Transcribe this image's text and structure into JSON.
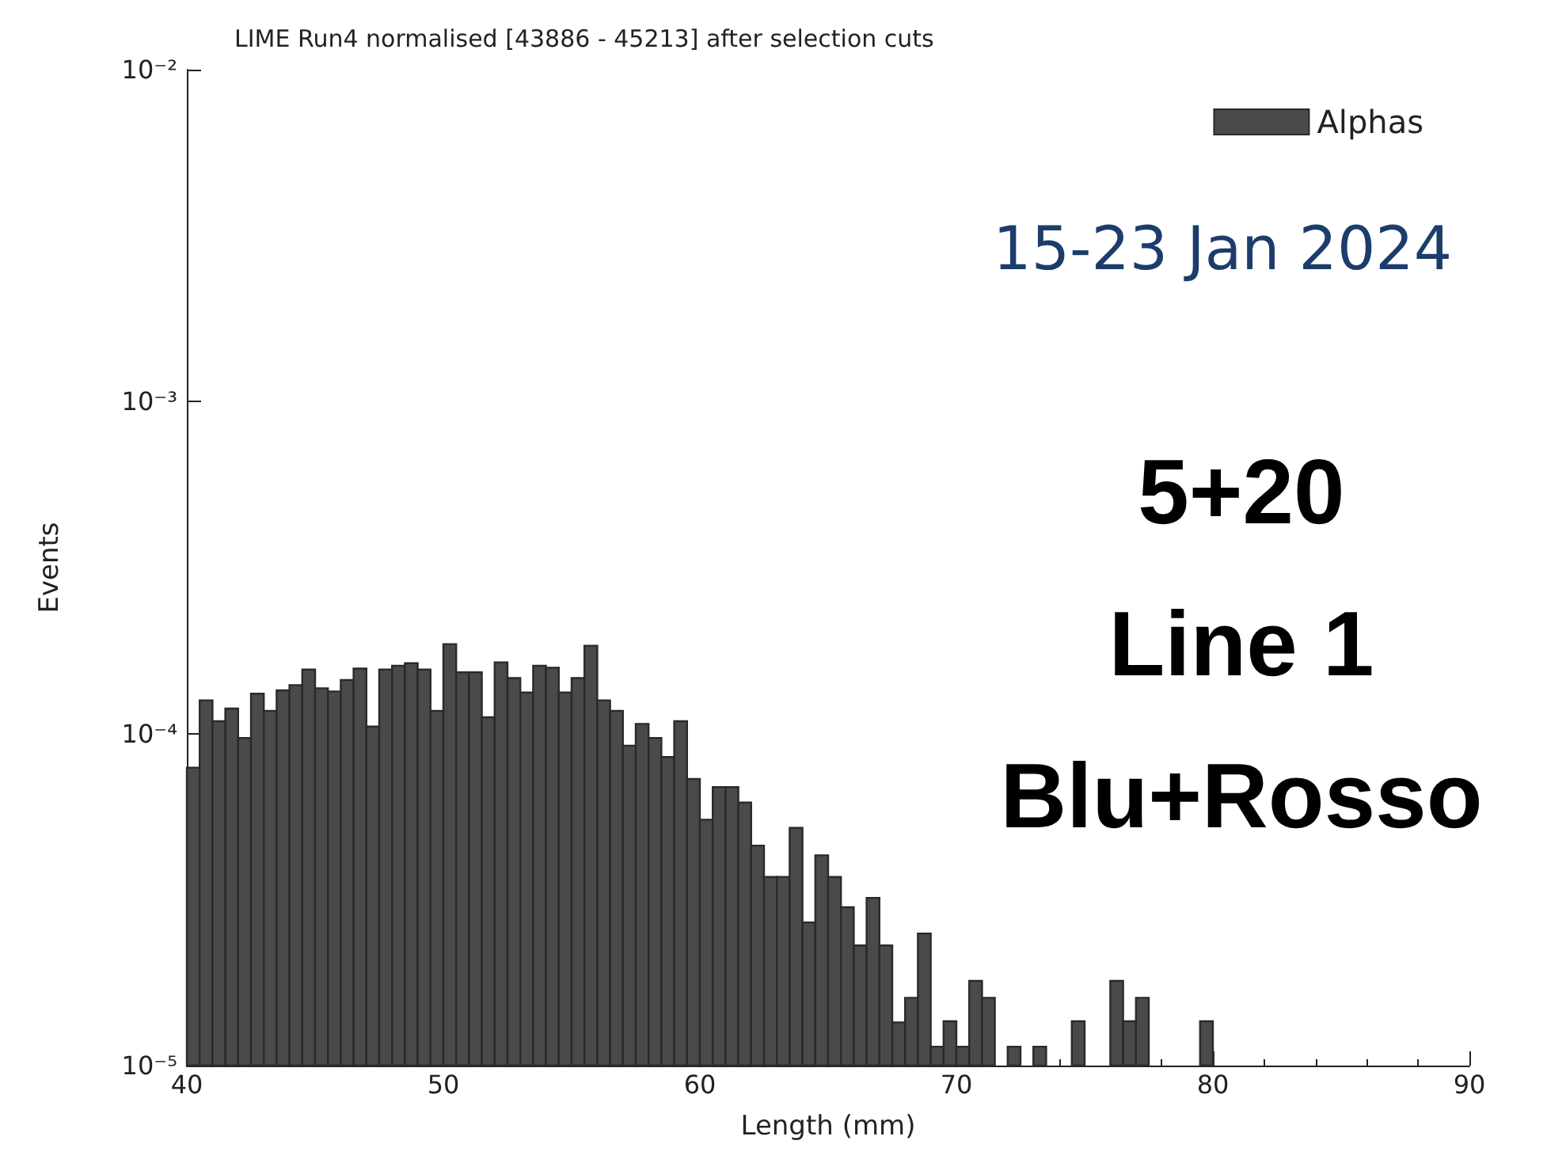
{
  "chart_data": {
    "type": "histogram",
    "title": "LIME Run4 normalised [43886 - 45213] after selection cuts",
    "xlabel": "Length (mm)",
    "ylabel": "Events",
    "annotations": [
      "15-23 Jan 2024",
      "5+20",
      "Line 1",
      "Blu+Rosso"
    ],
    "bins": [
      40,
      40.5,
      41,
      41.5,
      42,
      42.5,
      43,
      43.5,
      44,
      44.5,
      45,
      45.5,
      46,
      46.5,
      47,
      47.5,
      48,
      48.5,
      49,
      49.5,
      50,
      50.5,
      51,
      51.5,
      52,
      52.5,
      53,
      53.5,
      54,
      54.5,
      55,
      55.5,
      56,
      56.5,
      57,
      57.5,
      58,
      58.5,
      59,
      59.5,
      60,
      60.5,
      61,
      61.5,
      62,
      62.5,
      63,
      63.5,
      64,
      64.5,
      65,
      65.5,
      66,
      66.5,
      67,
      67.5,
      68,
      68.5,
      69,
      69.5,
      70,
      70.5,
      71,
      71.5,
      72,
      72.5,
      73,
      73.5,
      74,
      74.5,
      75,
      75.5,
      76,
      76.5,
      77,
      77.5,
      78,
      78.5,
      79,
      79.5,
      80
    ],
    "series": [
      {
        "name": "Alphas",
        "color": "#4a4a4a",
        "values": [
          7.9e-05,
          0.000126,
          0.000109,
          0.000119,
          9.7e-05,
          0.000132,
          0.000117,
          0.000135,
          0.00014,
          0.000156,
          0.000137,
          0.000134,
          0.000145,
          0.000157,
          0.000105,
          0.000156,
          0.00016,
          0.000163,
          0.000156,
          0.000117,
          0.000186,
          0.000153,
          0.000153,
          0.000112,
          0.000164,
          0.000147,
          0.000133,
          0.00016,
          0.000158,
          0.000133,
          0.000147,
          0.000184,
          0.000126,
          0.000117,
          9.2e-05,
          0.000107,
          9.7e-05,
          8.5e-05,
          0.000109,
          7.3e-05,
          5.5e-05,
          6.9e-05,
          6.9e-05,
          6.2e-05,
          4.6e-05,
          3.7e-05,
          3.7e-05,
          5.2e-05,
          2.7e-05,
          4.3e-05,
          3.7e-05,
          3e-05,
          2.3e-05,
          3.2e-05,
          2.3e-05,
          1.35e-05,
          1.6e-05,
          2.5e-05,
          1.14e-05,
          1.36e-05,
          1.14e-05,
          1.8e-05,
          1.6e-05,
          null,
          1.14e-05,
          null,
          1.14e-05,
          null,
          null,
          1.36e-05,
          null,
          null,
          1.8e-05,
          1.36e-05,
          1.6e-05,
          null,
          null,
          null,
          null,
          1.36e-05
        ]
      }
    ],
    "xlim": [
      40,
      90
    ],
    "xticks": [
      40,
      50,
      60,
      70,
      80,
      90
    ],
    "ylim": [
      1e-05,
      0.01
    ],
    "yticks": [
      {
        "value": 1e-05,
        "label": "10⁻⁵"
      },
      {
        "value": 0.0001,
        "label": "10⁻⁴"
      },
      {
        "value": 0.001,
        "label": "10⁻³"
      },
      {
        "value": 0.01,
        "label": "10⁻²"
      }
    ],
    "log": true,
    "grid": false,
    "legend": "top right"
  }
}
